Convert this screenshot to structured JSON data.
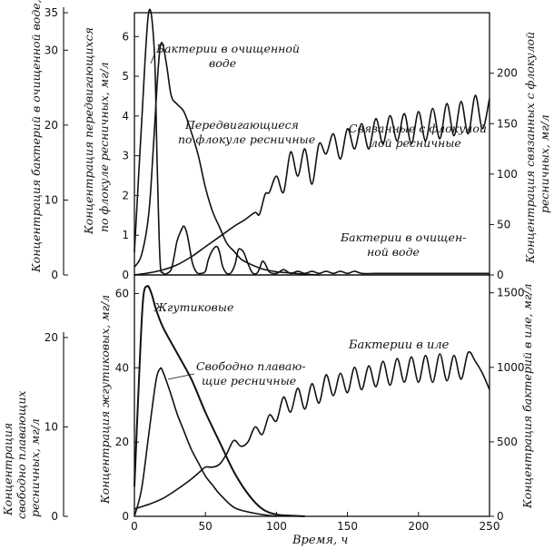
{
  "chart_data": [
    {
      "type": "line",
      "panel": "top",
      "xlim": [
        0,
        250
      ],
      "grid": false,
      "axes": [
        {
          "id": "yB",
          "side": "left-outer",
          "label": "Концентрация бактерий в очищенной воде, мг/л",
          "ylim": [
            0,
            35
          ],
          "ticks": [
            0,
            10,
            20,
            30,
            35
          ]
        },
        {
          "id": "yC",
          "side": "left-inner",
          "label": "Концентрация передвигающихся по флокуле ресничных, мг/л",
          "ylim": [
            0,
            6.6
          ],
          "ticks": [
            0,
            1,
            2,
            3,
            4,
            5,
            6
          ]
        },
        {
          "id": "yS",
          "side": "right",
          "label": "Концентрация связанных с флокулой ресничных, мг/л",
          "ylim": [
            0,
            260
          ],
          "ticks": [
            0,
            50,
            100,
            150,
            200
          ]
        }
      ],
      "series": [
        {
          "name": "Бактерии в очищенной воде",
          "axis": "yB",
          "x": [
            0,
            5,
            10,
            14,
            16,
            18,
            20,
            23,
            26,
            28,
            30,
            33,
            35,
            37,
            39,
            41,
            44,
            47,
            50,
            52,
            55,
            58,
            60,
            62,
            65,
            68,
            71,
            73,
            75,
            77,
            80,
            83,
            86,
            88,
            90,
            92,
            95,
            100,
            105,
            110,
            115,
            120,
            125,
            130,
            135,
            140,
            145,
            150,
            155,
            160,
            170,
            180,
            190,
            200,
            210,
            220,
            230,
            240,
            250
          ],
          "y": [
            3,
            20,
            35,
            30,
            15,
            2,
            0.3,
            0.2,
            0.8,
            2.5,
            4.5,
            6,
            6.5,
            5.5,
            3.5,
            1.5,
            0.3,
            0.2,
            0.5,
            2,
            3.3,
            3.8,
            3,
            1.2,
            0.2,
            0.3,
            1.5,
            3.3,
            3.4,
            3,
            1.5,
            0.3,
            0.2,
            0.8,
            1.8,
            1.5,
            0.4,
            0.2,
            0.7,
            0.2,
            0.5,
            0.2,
            0.5,
            0.2,
            0.5,
            0.2,
            0.5,
            0.2,
            0.5,
            0.2,
            0.2,
            0.2,
            0.2,
            0.2,
            0.2,
            0.2,
            0.2,
            0.2,
            0.2
          ]
        },
        {
          "name": "Передвигающиеся по флокуле ресничные",
          "axis": "yC",
          "x": [
            0,
            5,
            10,
            13,
            16,
            18,
            20,
            23,
            26,
            30,
            35,
            40,
            45,
            50,
            55,
            60,
            65,
            70,
            75,
            80,
            90,
            100,
            110,
            120,
            130
          ],
          "y": [
            0.2,
            0.5,
            1.5,
            3,
            4.8,
            5.7,
            5.8,
            5.2,
            4.5,
            4.3,
            4.1,
            3.6,
            3,
            2.2,
            1.6,
            1.2,
            0.8,
            0.6,
            0.4,
            0.3,
            0.15,
            0.08,
            0.05,
            0.02,
            0
          ]
        },
        {
          "name": "Связанные с флокулой ресничные",
          "axis": "yS",
          "x": [
            0,
            10,
            20,
            30,
            40,
            50,
            60,
            70,
            78,
            85,
            88,
            92,
            95,
            100,
            105,
            110,
            115,
            120,
            125,
            130,
            135,
            140,
            145,
            150,
            155,
            160,
            165,
            170,
            175,
            180,
            185,
            190,
            195,
            200,
            205,
            210,
            215,
            220,
            225,
            230,
            235,
            240,
            245,
            250
          ],
          "y": [
            0,
            2,
            5,
            10,
            18,
            28,
            38,
            48,
            55,
            62,
            60,
            80,
            82,
            98,
            82,
            122,
            98,
            125,
            90,
            130,
            120,
            140,
            115,
            145,
            125,
            150,
            125,
            155,
            130,
            158,
            133,
            160,
            130,
            162,
            133,
            165,
            135,
            170,
            138,
            172,
            140,
            178,
            145,
            175
          ]
        }
      ]
    },
    {
      "type": "line",
      "panel": "bottom",
      "xlim": [
        0,
        250
      ],
      "xticks": [
        0,
        50,
        100,
        150,
        200,
        250
      ],
      "xlabel": "Время, ч",
      "grid": false,
      "axes": [
        {
          "id": "yF",
          "side": "left-inner",
          "label": "Концентрация жгутиковых, мг/л",
          "ylim": [
            0,
            65
          ],
          "ticks": [
            0,
            20,
            40,
            60
          ]
        },
        {
          "id": "yFr",
          "side": "left-outer",
          "label": "Концентрация свободно плавающих ресничных, мг/л",
          "ylim": [
            0,
            27
          ],
          "ticks": [
            0,
            10,
            20
          ]
        },
        {
          "id": "yBs",
          "side": "right",
          "label": "Концентрация бактерий в иле, мг/л",
          "ylim": [
            0,
            1620
          ],
          "ticks": [
            0,
            500,
            1000,
            1500
          ]
        }
      ],
      "series": [
        {
          "name": "Жгутиковые",
          "axis": "yF",
          "x": [
            0,
            3,
            6,
            9,
            12,
            15,
            20,
            30,
            40,
            50,
            60,
            70,
            80,
            90,
            100,
            110,
            120
          ],
          "y": [
            8,
            35,
            58,
            62,
            60,
            56,
            51,
            44,
            37,
            28,
            20,
            12,
            6,
            2,
            0.5,
            0.2,
            0
          ],
          "annotation": "Жгутиковые"
        },
        {
          "name": "Свободно плавающие ресничные",
          "axis": "yFr",
          "x": [
            0,
            5,
            10,
            15,
            18,
            20,
            25,
            30,
            35,
            40,
            45,
            50,
            55,
            60,
            70,
            80,
            90,
            100
          ],
          "y": [
            0,
            3,
            9,
            15,
            16.5,
            16.2,
            14,
            11.5,
            9.5,
            7.5,
            6,
            4.5,
            3.5,
            2.5,
            1,
            0.5,
            0.2,
            0
          ],
          "annotation": "Свободно плавающие ресничные"
        },
        {
          "name": "Бактерии в иле",
          "axis": "yBs",
          "x": [
            0,
            10,
            20,
            30,
            40,
            45,
            50,
            55,
            60,
            65,
            70,
            75,
            80,
            85,
            90,
            95,
            100,
            105,
            110,
            115,
            120,
            125,
            130,
            135,
            140,
            145,
            150,
            155,
            160,
            165,
            170,
            175,
            180,
            185,
            190,
            195,
            200,
            205,
            210,
            215,
            220,
            225,
            230,
            235,
            240,
            245,
            250
          ],
          "y": [
            50,
            80,
            120,
            180,
            250,
            290,
            330,
            330,
            350,
            420,
            510,
            470,
            500,
            600,
            550,
            680,
            640,
            800,
            700,
            860,
            720,
            890,
            760,
            950,
            810,
            960,
            830,
            1000,
            850,
            1010,
            870,
            1040,
            880,
            1060,
            900,
            1070,
            900,
            1080,
            900,
            1090,
            910,
            1080,
            920,
            1100,
            1040,
            960,
            850
          ],
          "annotation": "Бактерии в иле"
        }
      ]
    }
  ],
  "annotations": {
    "top_bact": [
      "Бактерии в очищенной",
      "воде"
    ],
    "top_cil": [
      "Передвигающиеся",
      "по флокуле ресничные"
    ],
    "top_attached": [
      "Связанные с флокулой",
      "лой ресничные"
    ],
    "top_bact2": [
      "Бактерии в очищен-",
      "ной воде"
    ],
    "bot_flag": [
      "Жгутиковые"
    ],
    "bot_free": [
      "Свободно плаваю-",
      "щие ресничные"
    ],
    "bot_bact": [
      "Бактерии в иле"
    ]
  },
  "labels": {
    "yB": "Концентрация бактерий в очищенной воде, мг/л",
    "yC": [
      "Концентрация передвигающихся",
      "по флокуле ресничных,  мг/л"
    ],
    "yS": [
      "Концентрация связанных с флокулой",
      "ресничных, мг/л"
    ],
    "yF": "Концентрация жгутиковых, мг/л",
    "yFr": [
      "Концентрация",
      "свободно плавающих",
      "ресничных,  мг/л"
    ],
    "yBs": "Концентрация бактерий в иле, мг/л",
    "x": "Время, ч"
  }
}
